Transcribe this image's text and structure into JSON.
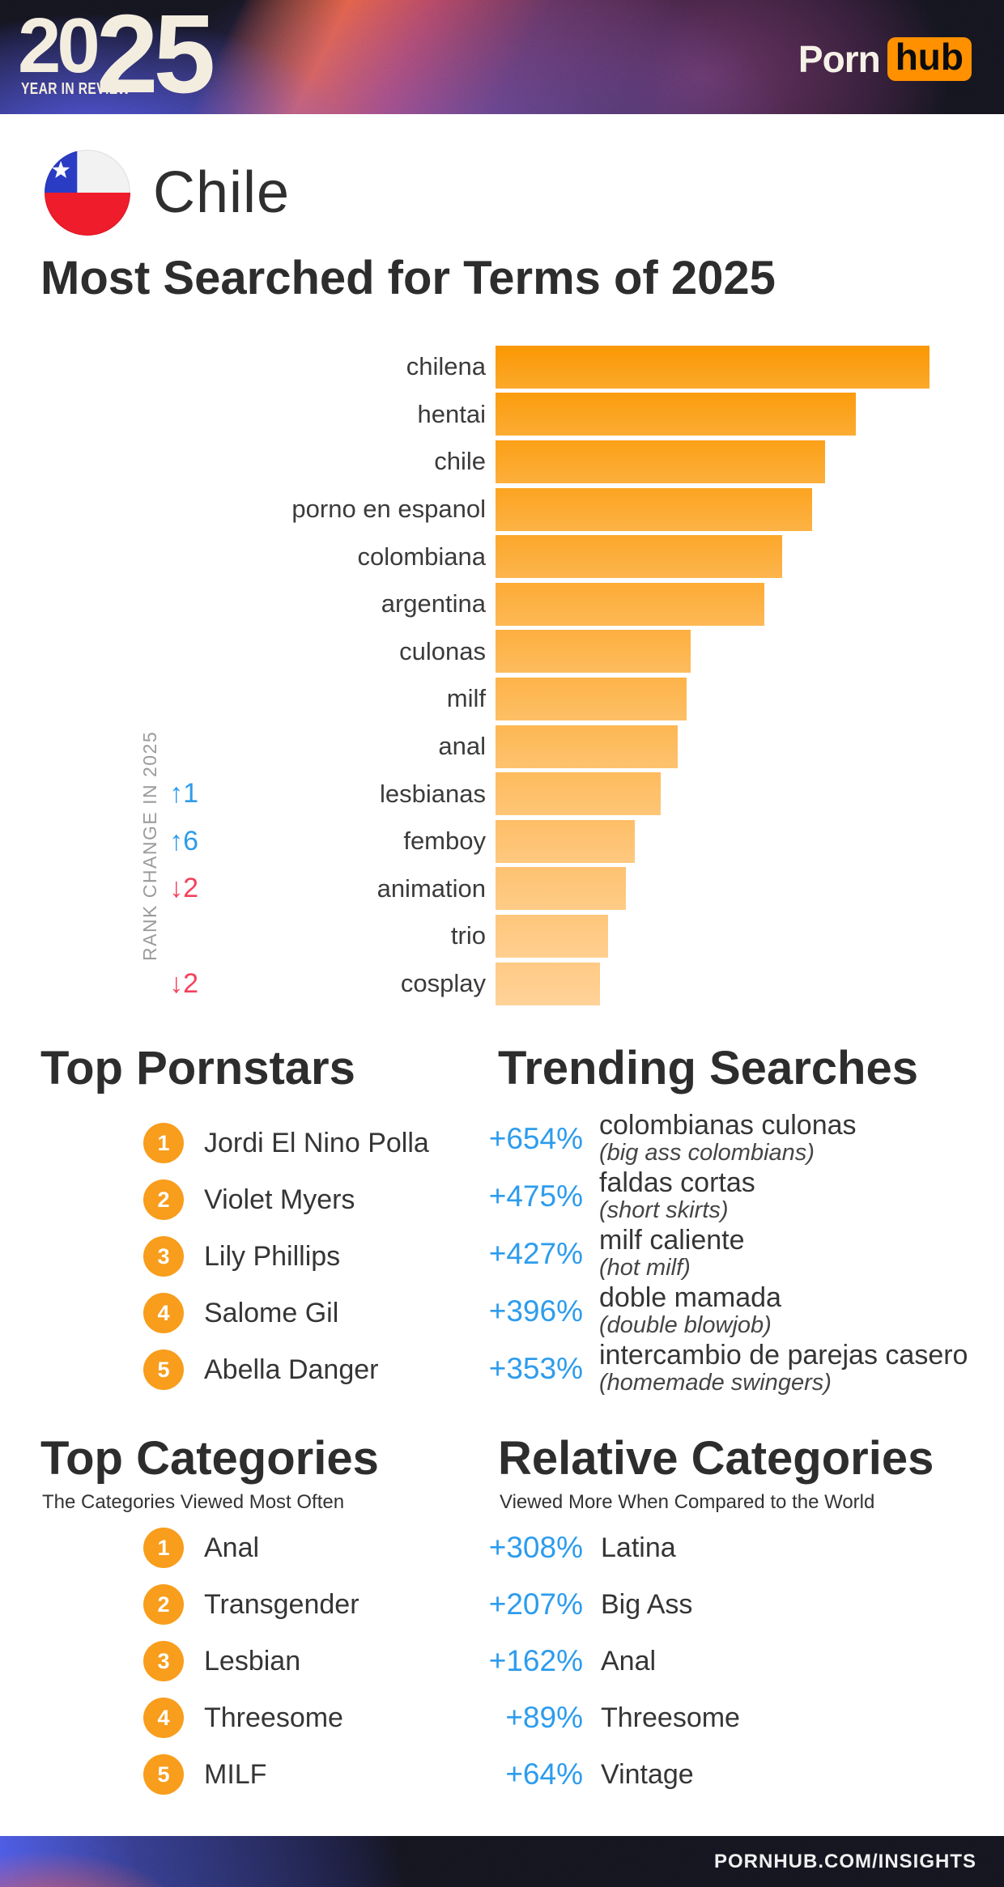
{
  "header": {
    "logo_year_first": "20",
    "logo_year_second": "25",
    "logo_tagline": "YEAR IN REVIEW",
    "brand_word": "Porn",
    "brand_badge": "hub"
  },
  "country": {
    "name": "Chile"
  },
  "page_title": "Most Searched for Terms of 2025",
  "chart_data": {
    "type": "bar",
    "orientation": "horizontal",
    "title": "Most Searched for Terms of 2025",
    "axis_label": "RANK CHANGE IN 2025",
    "categories": [
      "chilena",
      "hentai",
      "chile",
      "porno en espanol",
      "colombiana",
      "argentina",
      "culonas",
      "milf",
      "anal",
      "lesbianas",
      "femboy",
      "animation",
      "trio",
      "cosplay"
    ],
    "values_pct_of_max": [
      100,
      83,
      76,
      73,
      66,
      62,
      45,
      44,
      42,
      38,
      32,
      30,
      26,
      24
    ],
    "rank_changes": [
      null,
      null,
      null,
      null,
      null,
      null,
      null,
      null,
      null,
      "↑1",
      "↑6",
      "↓2",
      null,
      "↓2"
    ],
    "xlim": [
      0,
      100
    ],
    "grid": false,
    "legend": false,
    "bar_color_start": "#FB9803",
    "bar_color_end": "#FFCA85"
  },
  "sections": {
    "top_pornstars": {
      "title": "Top Pornstars",
      "items": [
        {
          "rank": "1",
          "name": "Jordi El Nino Polla"
        },
        {
          "rank": "2",
          "name": "Violet Myers"
        },
        {
          "rank": "3",
          "name": "Lily Phillips"
        },
        {
          "rank": "4",
          "name": "Salome Gil"
        },
        {
          "rank": "5",
          "name": "Abella Danger"
        }
      ]
    },
    "trending_searches": {
      "title": "Trending Searches",
      "items": [
        {
          "change": "+654%",
          "term": "colombianas culonas",
          "translation": "(big ass colombians)"
        },
        {
          "change": "+475%",
          "term": "faldas cortas",
          "translation": "(short skirts)"
        },
        {
          "change": "+427%",
          "term": "milf caliente",
          "translation": "(hot milf)"
        },
        {
          "change": "+396%",
          "term": "doble mamada",
          "translation": "(double blowjob)"
        },
        {
          "change": "+353%",
          "term": "intercambio de parejas casero",
          "translation": "(homemade swingers)"
        }
      ]
    },
    "top_categories": {
      "title": "Top Categories",
      "subtitle": "The Categories Viewed Most Often",
      "items": [
        {
          "rank": "1",
          "name": "Anal"
        },
        {
          "rank": "2",
          "name": "Transgender"
        },
        {
          "rank": "3",
          "name": "Lesbian"
        },
        {
          "rank": "4",
          "name": "Threesome"
        },
        {
          "rank": "5",
          "name": "MILF"
        }
      ]
    },
    "relative_categories": {
      "title": "Relative Categories",
      "subtitle": "Viewed More When Compared to the World",
      "items": [
        {
          "change": "+308%",
          "name": "Latina"
        },
        {
          "change": "+207%",
          "name": "Big Ass"
        },
        {
          "change": "+162%",
          "name": "Anal"
        },
        {
          "change": "+89%",
          "name": "Threesome"
        },
        {
          "change": "+64%",
          "name": "Vintage"
        }
      ]
    }
  },
  "footer": {
    "url": "PORNHUB.COM/INSIGHTS"
  },
  "colors": {
    "badge_orange": "#F89D1C",
    "brand_orange": "#FF9000",
    "rank_up_blue": "#2E9CEA",
    "rank_down_red": "#F4415C",
    "percent_blue": "#2D9CED",
    "heading_dark": "#2D2D2D",
    "muted_gray": "#9B9B9B",
    "logo_cream": "#F3EDDF"
  }
}
